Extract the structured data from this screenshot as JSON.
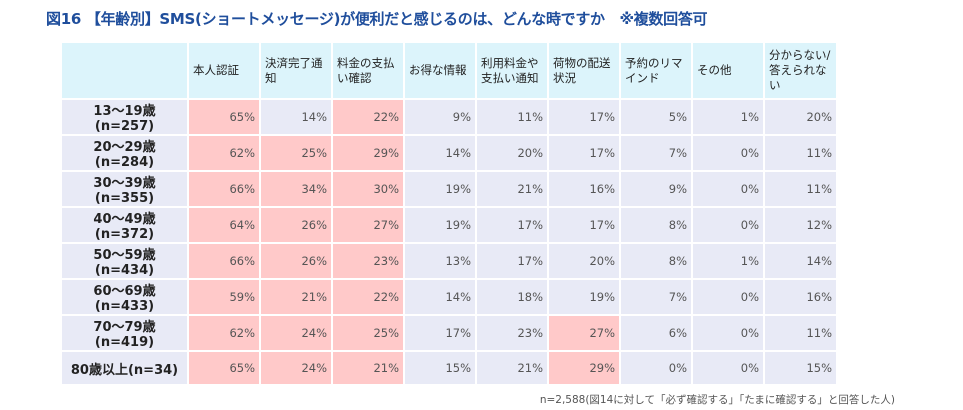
{
  "title": "図16 【年齢別】SMS(ショートメッセージ)が便利だと感じるのは、どんな時ですか　※複数回答可",
  "columns": [
    "本人認証",
    "決済完了通知",
    "料金の支払い確認",
    "お得な情報",
    "利用料金や支払い通知",
    "荷物の配送状況",
    "予約のリマインド",
    "その他",
    "分からない/答えられない"
  ],
  "rows": [
    {
      "label": "13〜19歳(n=257)",
      "values": [
        "65%",
        "14%",
        "22%",
        "9%",
        "11%",
        "17%",
        "5%",
        "1%",
        "20%"
      ],
      "highlight": [
        true,
        false,
        true,
        false,
        false,
        false,
        false,
        false,
        false
      ]
    },
    {
      "label": "20〜29歳(n=284)",
      "values": [
        "62%",
        "25%",
        "29%",
        "14%",
        "20%",
        "17%",
        "7%",
        "0%",
        "11%"
      ],
      "highlight": [
        true,
        true,
        true,
        false,
        false,
        false,
        false,
        false,
        false
      ]
    },
    {
      "label": "30〜39歳(n=355)",
      "values": [
        "66%",
        "34%",
        "30%",
        "19%",
        "21%",
        "16%",
        "9%",
        "0%",
        "11%"
      ],
      "highlight": [
        true,
        true,
        true,
        false,
        false,
        false,
        false,
        false,
        false
      ]
    },
    {
      "label": "40〜49歳(n=372)",
      "values": [
        "64%",
        "26%",
        "27%",
        "19%",
        "17%",
        "17%",
        "8%",
        "0%",
        "12%"
      ],
      "highlight": [
        true,
        true,
        true,
        false,
        false,
        false,
        false,
        false,
        false
      ]
    },
    {
      "label": "50〜59歳(n=434)",
      "values": [
        "66%",
        "26%",
        "23%",
        "13%",
        "17%",
        "20%",
        "8%",
        "1%",
        "14%"
      ],
      "highlight": [
        true,
        true,
        true,
        false,
        false,
        false,
        false,
        false,
        false
      ]
    },
    {
      "label": "60〜69歳(n=433)",
      "values": [
        "59%",
        "21%",
        "22%",
        "14%",
        "18%",
        "19%",
        "7%",
        "0%",
        "16%"
      ],
      "highlight": [
        true,
        true,
        true,
        false,
        false,
        false,
        false,
        false,
        false
      ]
    },
    {
      "label": "70〜79歳(n=419)",
      "values": [
        "62%",
        "24%",
        "25%",
        "17%",
        "23%",
        "27%",
        "6%",
        "0%",
        "11%"
      ],
      "highlight": [
        true,
        true,
        true,
        false,
        false,
        true,
        false,
        false,
        false
      ]
    },
    {
      "label": "80歳以上(n=34)",
      "values": [
        "65%",
        "24%",
        "21%",
        "15%",
        "21%",
        "29%",
        "0%",
        "0%",
        "15%"
      ],
      "highlight": [
        true,
        true,
        true,
        false,
        false,
        true,
        false,
        false,
        false
      ]
    }
  ],
  "note": "n=2,588(図14に対して「必ず確認する」「たまに確認する」と回答した人)",
  "colors": {
    "title": "#1f4e9c",
    "header": "#dcf4fb",
    "cell": "#e8eaf6",
    "highlight": "#ffc9c9"
  }
}
